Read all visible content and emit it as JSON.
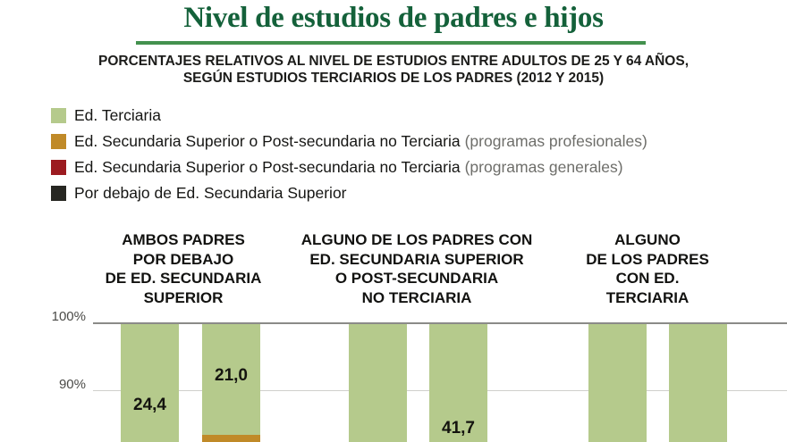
{
  "header": {
    "title": "Nivel de estudios de padres e hijos",
    "subtitle": "PORCENTAJES RELATIVOS AL NIVEL DE ESTUDIOS ENTRE ADULTOS DE 25 Y 64 AÑOS,\nSEGÚN ESTUDIOS TERCIARIOS DE LOS PADRES (2012 Y 2015)"
  },
  "colors": {
    "title_green": "#14613a",
    "underline_green": "#43914e",
    "ed_terciaria": "#b5ca8c",
    "ed_secundaria_profesionales": "#c08a28",
    "ed_secundaria_generales": "#9c1b20",
    "por_debajo": "#272722",
    "axis_line": "#8b8b88",
    "grid_line": "#cfcfcc"
  },
  "legend": {
    "items": [
      {
        "label": "Ed. Terciaria",
        "note": "",
        "color": "#b5ca8c"
      },
      {
        "label": "Ed. Secundaria Superior o Post-secundaria no Terciaria",
        "note": "(programas profesionales)",
        "color": "#c08a28"
      },
      {
        "label": "Ed. Secundaria Superior o Post-secundaria no Terciaria",
        "note": "(programas generales)",
        "color": "#9c1b20"
      },
      {
        "label": "Por debajo de Ed. Secundaria Superior",
        "note": "",
        "color": "#272722"
      }
    ]
  },
  "chart_data": {
    "type": "bar",
    "stacked": true,
    "title": "Nivel de estudios de padres e hijos",
    "ylabel": "",
    "y_ticks": [
      "100%",
      "90%"
    ],
    "grid": true,
    "legend_position": "top-left",
    "series_order_top_to_bottom": [
      "Ed. Terciaria",
      "Ed. Secundaria Superior o Post-secundaria no Terciaria (programas profesionales)",
      "Ed. Secundaria Superior o Post-secundaria no Terciaria (programas generales)",
      "Por debajo de Ed. Secundaria Superior"
    ],
    "groups": [
      {
        "label": "AMBOS PADRES\nPOR DEBAJO\nDE ED. SECUNDARIA\nSUPERIOR",
        "bars": [
          {
            "label": "24,4",
            "value": 24.4,
            "series": "Ed. Terciaria"
          },
          {
            "label": "21,0",
            "value": 21.0,
            "series": "Ed. Terciaria"
          }
        ]
      },
      {
        "label": "ALGUNO DE LOS PADRES CON\nED. SECUNDARIA SUPERIOR\nO POST-SECUNDARIA\nNO TERCIARIA",
        "bars": [
          {
            "label": "",
            "series": "Ed. Terciaria"
          },
          {
            "label": "41,7",
            "value": 41.7,
            "series": "Ed. Terciaria"
          }
        ]
      },
      {
        "label": "ALGUNO\nDE LOS PADRES\nCON ED.\nTERCIARIA",
        "bars": [
          {
            "label": "",
            "series": "Ed. Terciaria"
          },
          {
            "label": "",
            "series": "Ed. Terciaria"
          }
        ]
      }
    ]
  }
}
